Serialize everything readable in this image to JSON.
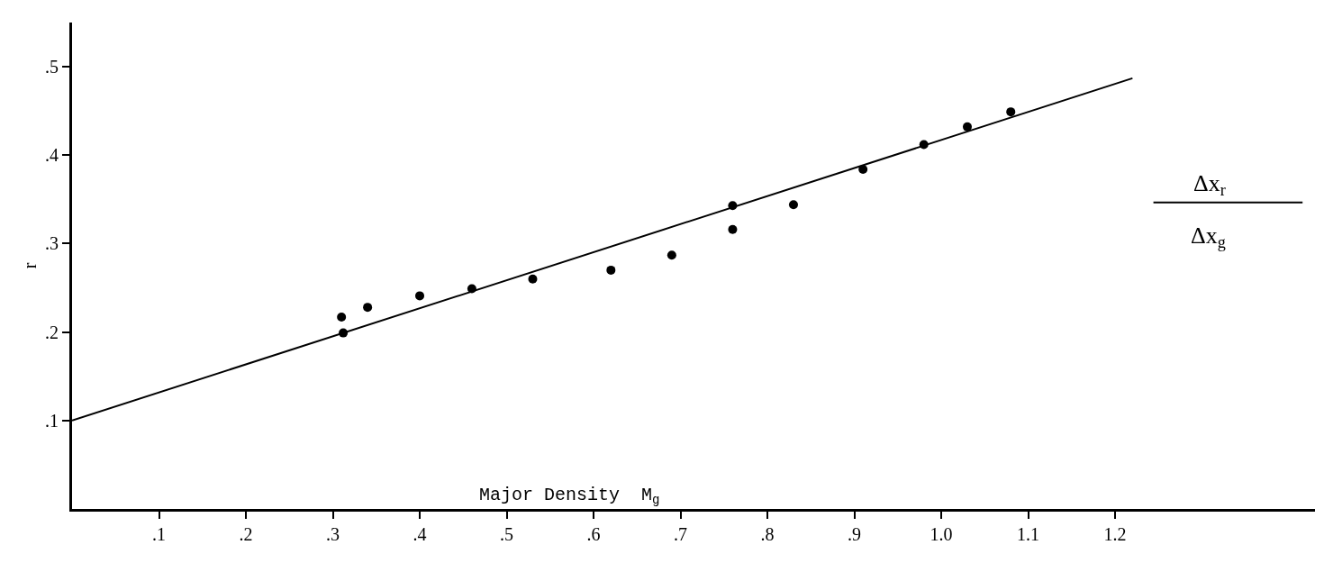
{
  "chart_data": {
    "type": "scatter",
    "xlabel": "Major Density  M$_{g}$",
    "ylabel": "r",
    "annotations": [
      "Δx$_{r}$",
      "Δx$_{g}$"
    ],
    "xlim": [
      0,
      1.43
    ],
    "ylim": [
      0,
      0.55
    ],
    "xticks": [
      {
        "value": 0.1,
        "label": ".1"
      },
      {
        "value": 0.2,
        "label": ".2"
      },
      {
        "value": 0.3,
        "label": ".3"
      },
      {
        "value": 0.4,
        "label": ".4"
      },
      {
        "value": 0.5,
        "label": ".5"
      },
      {
        "value": 0.6,
        "label": ".6"
      },
      {
        "value": 0.7,
        "label": ".7"
      },
      {
        "value": 0.8,
        "label": ".8"
      },
      {
        "value": 0.9,
        "label": ".9"
      },
      {
        "value": 1.0,
        "label": "1.0"
      },
      {
        "value": 1.1,
        "label": "1.1"
      },
      {
        "value": 1.2,
        "label": "1.2"
      }
    ],
    "yticks": [
      {
        "value": 0.1,
        "label": ".1"
      },
      {
        "value": 0.2,
        "label": ".2"
      },
      {
        "value": 0.3,
        "label": ".3"
      },
      {
        "value": 0.4,
        "label": ".4"
      },
      {
        "value": 0.5,
        "label": ".5"
      }
    ],
    "legend": false,
    "series": [
      {
        "marker": "circle",
        "color": "#000000",
        "x": [
          0.31,
          0.312,
          0.34,
          0.4,
          0.46,
          0.53,
          0.62,
          0.69,
          0.76,
          0.76,
          0.83,
          0.91,
          0.98,
          1.03,
          1.08
        ],
        "values": [
          0.217,
          0.199,
          0.228,
          0.241,
          0.249,
          0.26,
          0.27,
          0.287,
          0.316,
          0.343,
          0.344,
          0.384,
          0.412,
          0.432,
          0.449
        ]
      },
      {
        "type": "line",
        "color": "#000000",
        "x": [
          0,
          1.22
        ],
        "values": [
          0.1,
          0.487
        ]
      }
    ]
  }
}
